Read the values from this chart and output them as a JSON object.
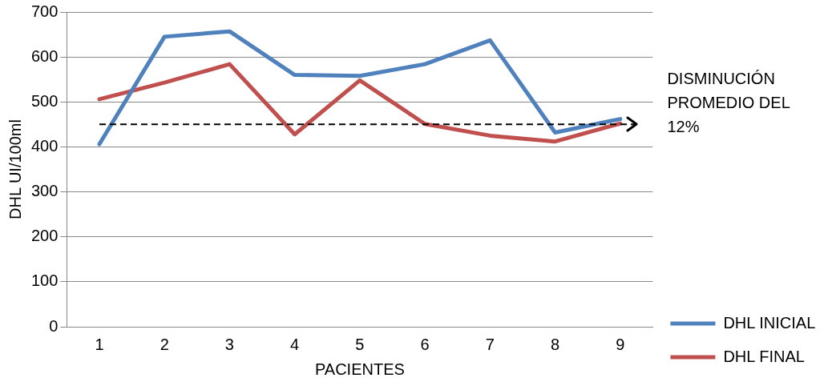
{
  "chart_data": {
    "type": "line",
    "xlabel": "PACIENTES",
    "ylabel": "DHL UI/100ml",
    "categories": [
      "1",
      "2",
      "3",
      "4",
      "5",
      "6",
      "7",
      "8",
      "9"
    ],
    "series": [
      {
        "name": "DHL INICIAL",
        "color": "#4f81bd",
        "values": [
          406,
          645,
          657,
          560,
          558,
          584,
          637,
          432,
          462
        ]
      },
      {
        "name": "DHL FINAL",
        "color": "#c0504d",
        "values": [
          506,
          543,
          584,
          428,
          548,
          451,
          425,
          412,
          452
        ]
      }
    ],
    "ylim": [
      0,
      700
    ],
    "yticks": [
      0,
      100,
      200,
      300,
      400,
      500,
      600,
      700
    ],
    "grid": "y",
    "legend": "bottom right",
    "marker": "none",
    "line_style": "solid",
    "ref_lines": [
      {
        "axis": "y",
        "value": 450,
        "label": "DISMINUCIÓN PROMEDIO  DEL 12%",
        "color": "#000000",
        "line_style": "dashed"
      }
    ]
  }
}
